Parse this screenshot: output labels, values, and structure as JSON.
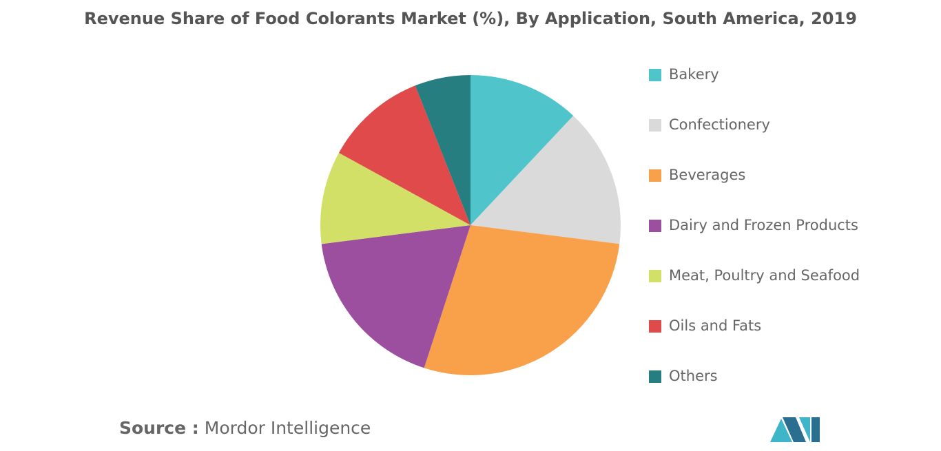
{
  "chart_data": {
    "type": "pie",
    "title": "Revenue Share of Food Colorants Market (%), By Application, South America, 2019",
    "categories": [
      "Bakery",
      "Confectionery",
      "Beverages",
      "Dairy and Frozen Products",
      "Meat, Poultry and Seafood",
      "Oils and Fats",
      "Others"
    ],
    "values": [
      12,
      15,
      28,
      18,
      10,
      11,
      6
    ],
    "colors": [
      "#4fc4cb",
      "#dadada",
      "#f9a04a",
      "#9b4f9e",
      "#d2e068",
      "#e04a4a",
      "#267e80"
    ],
    "legend": "right"
  },
  "source_label": "Source :",
  "source": "Mordor Intelligence"
}
